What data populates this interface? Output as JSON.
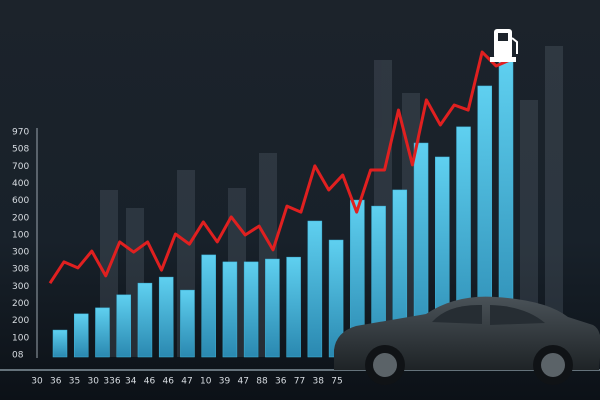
{
  "chart_data": {
    "type": "bar-line",
    "y_labels": [
      "970",
      "508",
      "700",
      "400",
      "600",
      "200",
      "100",
      "300",
      "308",
      "300",
      "200",
      "200",
      "100",
      "08"
    ],
    "x_labels": [
      "30",
      "36",
      "35",
      "30",
      "336",
      "34",
      "46",
      "46",
      "47",
      "10",
      "39",
      "47",
      "88",
      "36",
      "77",
      "38",
      "75"
    ],
    "ylim": [
      0,
      100
    ],
    "series": [
      {
        "type": "bar",
        "color": "#3fb6dc",
        "values": [
          8.5,
          13.6,
          15.5,
          19.6,
          23.3,
          25.2,
          21.1,
          32.2,
          30,
          30,
          30.9,
          31.5,
          42.9,
          36.9,
          49.5,
          47.6,
          52.7,
          67.5,
          63.1,
          72.6,
          85.5,
          93.7
        ]
      },
      {
        "type": "line",
        "color": "#e02020",
        "values": [
          23.3,
          30,
          28.1,
          33.4,
          25.6,
          36.3,
          33.1,
          36.3,
          27.4,
          38.8,
          35.6,
          42.6,
          36.3,
          44.2,
          38.5,
          41.3,
          33.8,
          47.6,
          45.7,
          60.3,
          52.7,
          57.4,
          45.7,
          59,
          59,
          77.9,
          60.6,
          81.1,
          73.2,
          79.5,
          77.9,
          96.2,
          91.8,
          93.7
        ]
      }
    ]
  }
}
